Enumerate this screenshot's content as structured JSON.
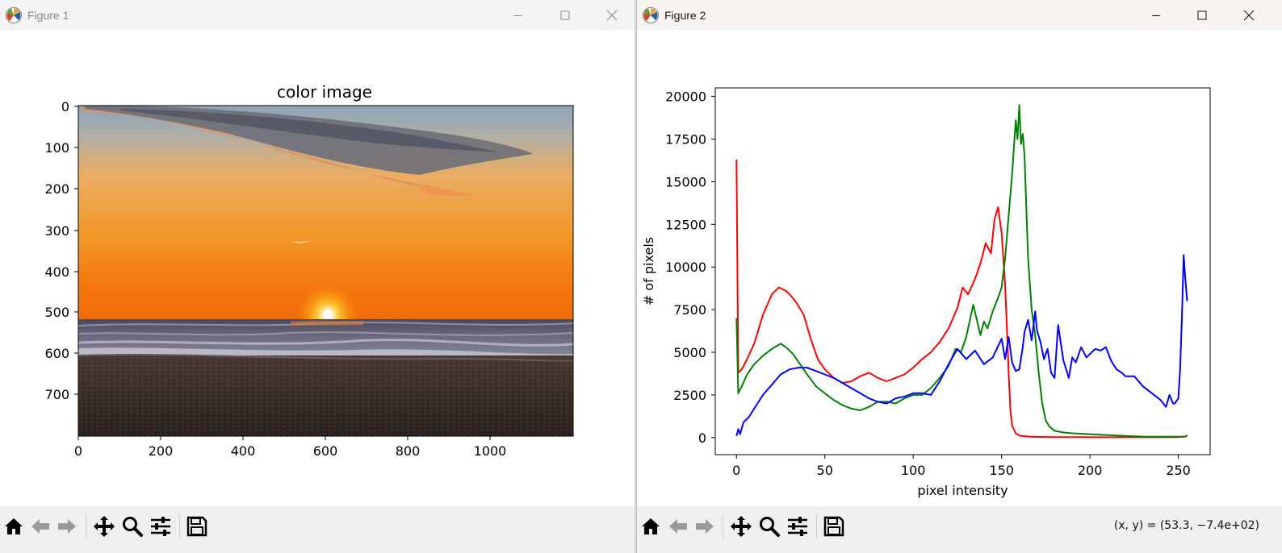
{
  "figure1": {
    "window_title": "Figure 1",
    "axes_title": "color image",
    "x_ticks": [
      "0",
      "200",
      "400",
      "600",
      "800",
      "1000"
    ],
    "y_ticks": [
      "0",
      "100",
      "200",
      "300",
      "400",
      "500",
      "600",
      "700"
    ]
  },
  "figure2": {
    "window_title": "Figure 2",
    "coord_readout": "(x, y) = (53.3, −7.4e+02)"
  },
  "toolbar": {
    "icons": [
      "home-icon",
      "back-arrow-icon",
      "forward-arrow-icon",
      "pan-icon",
      "zoom-icon",
      "configure-subplots-icon",
      "save-icon"
    ]
  },
  "colors": {
    "red_channel": "#ff0000",
    "green_channel": "#008000",
    "blue_channel": "#0000ff"
  },
  "chart_data": {
    "type": "line",
    "title": "",
    "xlabel": "pixel intensity",
    "ylabel": "# of pixels",
    "xlim": [
      -12,
      268
    ],
    "ylim": [
      -1000,
      20500
    ],
    "x_ticks": [
      "0",
      "50",
      "100",
      "150",
      "200",
      "250"
    ],
    "y_ticks": [
      "0",
      "2500",
      "5000",
      "7500",
      "10000",
      "12500",
      "15000",
      "17500",
      "20000"
    ],
    "legend": "none",
    "grid": false,
    "series": [
      {
        "color": "#ff0000",
        "x": [
          0,
          1,
          3,
          6,
          10,
          15,
          20,
          24,
          28,
          31,
          34,
          38,
          42,
          46,
          50,
          55,
          60,
          65,
          70,
          75,
          80,
          85,
          90,
          95,
          100,
          105,
          110,
          115,
          120,
          125,
          128,
          131,
          135,
          138,
          141,
          144,
          146,
          148,
          150,
          152,
          153,
          154,
          155,
          156,
          158,
          160,
          163,
          166,
          170,
          180,
          190,
          200,
          210,
          220,
          230,
          240,
          250,
          254,
          255
        ],
        "y": [
          16300,
          3800,
          4000,
          4600,
          5500,
          7200,
          8400,
          8800,
          8600,
          8300,
          7900,
          7200,
          5800,
          4600,
          4000,
          3500,
          3200,
          3300,
          3600,
          3800,
          3500,
          3300,
          3500,
          3700,
          4100,
          4600,
          5000,
          5600,
          6400,
          7600,
          8800,
          8400,
          9300,
          10200,
          11400,
          10800,
          12800,
          13500,
          12000,
          9000,
          6500,
          3800,
          1600,
          700,
          250,
          120,
          80,
          50,
          40,
          30,
          25,
          20,
          20,
          20,
          20,
          20,
          30,
          60,
          150
        ]
      },
      {
        "color": "#008000",
        "x": [
          0,
          1,
          3,
          6,
          10,
          15,
          20,
          25,
          28,
          32,
          36,
          40,
          45,
          50,
          55,
          60,
          65,
          70,
          75,
          80,
          85,
          90,
          95,
          100,
          105,
          110,
          115,
          120,
          124,
          127,
          130,
          134,
          138,
          140,
          142,
          145,
          148,
          150,
          152,
          154,
          156,
          158,
          159,
          160,
          161,
          162,
          163,
          164,
          165,
          167,
          169,
          171,
          173,
          175,
          177,
          180,
          185,
          190,
          200,
          210,
          220,
          230,
          240,
          250,
          254,
          255
        ],
        "y": [
          7000,
          2600,
          3000,
          3700,
          4300,
          4800,
          5200,
          5500,
          5300,
          4900,
          4300,
          3700,
          3000,
          2600,
          2200,
          1900,
          1700,
          1600,
          1800,
          2100,
          2100,
          2000,
          2300,
          2500,
          2500,
          2900,
          3500,
          4200,
          5200,
          5000,
          5900,
          7800,
          6000,
          6800,
          6400,
          7400,
          8200,
          8800,
          10500,
          13000,
          15500,
          18600,
          17500,
          19500,
          17200,
          17800,
          16500,
          13500,
          10500,
          7500,
          6000,
          3800,
          2000,
          1000,
          650,
          400,
          300,
          250,
          200,
          150,
          100,
          60,
          50,
          50,
          60,
          100
        ]
      },
      {
        "color": "#0000ff",
        "x": [
          0,
          1,
          2,
          4,
          7,
          10,
          15,
          20,
          25,
          30,
          35,
          40,
          45,
          50,
          55,
          60,
          65,
          70,
          75,
          80,
          85,
          90,
          95,
          100,
          105,
          110,
          115,
          120,
          125,
          130,
          135,
          140,
          145,
          150,
          152,
          154,
          156,
          158,
          160,
          162,
          163,
          165,
          167,
          169,
          170,
          172,
          174,
          176,
          178,
          180,
          182,
          185,
          188,
          190,
          192,
          195,
          198,
          200,
          203,
          206,
          209,
          212,
          215,
          218,
          220,
          225,
          230,
          235,
          240,
          243,
          245,
          247,
          248,
          250,
          251,
          252,
          253,
          254,
          255
        ],
        "y": [
          100,
          500,
          200,
          900,
          1200,
          1700,
          2500,
          3100,
          3700,
          4000,
          4100,
          4100,
          3900,
          3700,
          3500,
          3200,
          2900,
          2600,
          2300,
          2100,
          2000,
          2300,
          2400,
          2600,
          2600,
          2500,
          3300,
          4300,
          5200,
          4600,
          5100,
          4300,
          4700,
          5800,
          4600,
          5900,
          4400,
          3900,
          4000,
          5300,
          6200,
          6900,
          5700,
          7400,
          6300,
          5600,
          4600,
          5200,
          3800,
          3500,
          6600,
          4500,
          3500,
          4700,
          4400,
          5300,
          4700,
          4900,
          5200,
          5100,
          5300,
          4500,
          4000,
          3800,
          3600,
          3600,
          3000,
          2600,
          2200,
          1800,
          2500,
          2000,
          2000,
          2300,
          4000,
          7000,
          10700,
          9200,
          8000
        ]
      }
    ]
  }
}
